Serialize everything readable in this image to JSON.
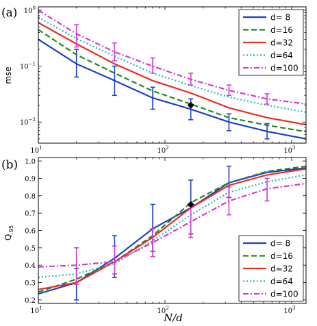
{
  "chart_data": [
    {
      "type": "line",
      "panel_label": "(a)",
      "xlabel": "",
      "ylabel": "mse",
      "xscale": "log",
      "yscale": "log",
      "xlim": [
        10,
        1300
      ],
      "ylim": [
        0.0042,
        1.15
      ],
      "x_ticks": [
        {
          "value": 10,
          "label": "10",
          "exp": "1"
        },
        {
          "value": 100,
          "label": "10",
          "exp": "2"
        },
        {
          "value": 1000,
          "label": "10",
          "exp": "3"
        }
      ],
      "y_ticks": [
        {
          "value": 1,
          "label": "10",
          "exp": "0"
        },
        {
          "value": 0.1,
          "label": "10",
          "exp": "−1"
        },
        {
          "value": 0.01,
          "label": "10",
          "exp": "−2"
        }
      ],
      "legend_position": "top-right",
      "series": [
        {
          "name": "d= 8",
          "color": "#1a3fcf",
          "dash": "solid",
          "x": [
            10,
            20,
            40,
            80,
            160,
            320,
            640,
            1300
          ],
          "y": [
            0.3,
            0.11,
            0.055,
            0.027,
            0.017,
            0.01,
            0.0068,
            0.005
          ],
          "errors": [
            {
              "x": 20,
              "lo": 0.064,
              "hi": 0.2
            },
            {
              "x": 40,
              "lo": 0.03,
              "hi": 0.1
            },
            {
              "x": 80,
              "lo": 0.017,
              "hi": 0.042
            },
            {
              "x": 160,
              "lo": 0.011,
              "hi": 0.026
            },
            {
              "x": 320,
              "lo": 0.007,
              "hi": 0.014
            },
            {
              "x": 640,
              "lo": 0.005,
              "hi": 0.0094
            }
          ]
        },
        {
          "name": "d=16",
          "color": "#1f8a1f",
          "dash": "dashed",
          "x": [
            10,
            20,
            40,
            80,
            160,
            320,
            640,
            1300
          ],
          "y": [
            0.45,
            0.16,
            0.075,
            0.036,
            0.021,
            0.012,
            0.0088,
            0.0067
          ]
        },
        {
          "name": "d=32",
          "color": "#ee2c1c",
          "dash": "solid",
          "x": [
            10,
            20,
            40,
            80,
            160,
            320,
            640,
            1300
          ],
          "y": [
            0.6,
            0.25,
            0.11,
            0.055,
            0.033,
            0.018,
            0.012,
            0.009
          ]
        },
        {
          "name": "d=64",
          "color": "#18b8c8",
          "dash": "dotted",
          "x": [
            10,
            20,
            40,
            80,
            160,
            320,
            640,
            1300
          ],
          "y": [
            0.75,
            0.31,
            0.15,
            0.075,
            0.045,
            0.028,
            0.02,
            0.015
          ]
        },
        {
          "name": "d=100",
          "color": "#d23ad2",
          "dash": "dashdot",
          "x": [
            10,
            20,
            40,
            80,
            160,
            320,
            640,
            1300
          ],
          "y": [
            1.0,
            0.38,
            0.18,
            0.1,
            0.058,
            0.037,
            0.026,
            0.021
          ],
          "errors": [
            {
              "x": 20,
              "lo": 0.22,
              "hi": 0.55
            },
            {
              "x": 40,
              "lo": 0.125,
              "hi": 0.26
            },
            {
              "x": 80,
              "lo": 0.075,
              "hi": 0.14
            },
            {
              "x": 160,
              "lo": 0.046,
              "hi": 0.075
            },
            {
              "x": 320,
              "lo": 0.03,
              "hi": 0.046
            },
            {
              "x": 640,
              "lo": 0.021,
              "hi": 0.032
            }
          ]
        }
      ],
      "marker": {
        "x": 160,
        "y": 0.02,
        "shape": "diamond",
        "color": "#000000"
      }
    },
    {
      "type": "line",
      "panel_label": "(b)",
      "xlabel": "N/d",
      "ylabel": "Q.95",
      "ylabel_main": "Q",
      "ylabel_sub": ".95",
      "xscale": "log",
      "yscale": "linear",
      "xlim": [
        10,
        1300
      ],
      "ylim": [
        0.18,
        1.02
      ],
      "x_ticks": [
        {
          "value": 10,
          "label": "10",
          "exp": "1"
        },
        {
          "value": 100,
          "label": "10",
          "exp": "2"
        },
        {
          "value": 1000,
          "label": "10",
          "exp": "3"
        }
      ],
      "y_ticks": [
        {
          "value": 0.2,
          "label": "0.2"
        },
        {
          "value": 0.3,
          "label": "0.3"
        },
        {
          "value": 0.4,
          "label": "0.4"
        },
        {
          "value": 0.5,
          "label": "0.5"
        },
        {
          "value": 0.6,
          "label": "0.6"
        },
        {
          "value": 0.7,
          "label": "0.7"
        },
        {
          "value": 0.8,
          "label": "0.8"
        },
        {
          "value": 0.9,
          "label": "0.9"
        },
        {
          "value": 1.0,
          "label": "1.0"
        }
      ],
      "legend_position": "bottom-right",
      "series": [
        {
          "name": "d= 8",
          "color": "#1a3fcf",
          "dash": "solid",
          "x": [
            10,
            20,
            40,
            80,
            160,
            320,
            640,
            1300
          ],
          "y": [
            0.235,
            0.3,
            0.44,
            0.61,
            0.73,
            0.875,
            0.935,
            0.96
          ],
          "errors": [
            {
              "x": 20,
              "lo": 0.2,
              "hi": 0.38
            },
            {
              "x": 40,
              "lo": 0.33,
              "hi": 0.57
            },
            {
              "x": 80,
              "lo": 0.48,
              "hi": 0.75
            },
            {
              "x": 160,
              "lo": 0.58,
              "hi": 0.89
            },
            {
              "x": 320,
              "lo": 0.79,
              "hi": 0.97
            }
          ]
        },
        {
          "name": "d=16",
          "color": "#1f8a1f",
          "dash": "dashed",
          "x": [
            10,
            20,
            40,
            80,
            160,
            320,
            640,
            1300
          ],
          "y": [
            0.245,
            0.32,
            0.42,
            0.57,
            0.76,
            0.875,
            0.94,
            0.97
          ]
        },
        {
          "name": "d=32",
          "color": "#ee2c1c",
          "dash": "solid",
          "x": [
            10,
            20,
            40,
            80,
            160,
            320,
            640,
            1300
          ],
          "y": [
            0.26,
            0.3,
            0.42,
            0.56,
            0.73,
            0.86,
            0.92,
            0.955
          ]
        },
        {
          "name": "d=64",
          "color": "#18b8c8",
          "dash": "dotted",
          "x": [
            10,
            20,
            40,
            80,
            160,
            320,
            640,
            1300
          ],
          "y": [
            0.33,
            0.35,
            0.41,
            0.54,
            0.69,
            0.82,
            0.88,
            0.92
          ]
        },
        {
          "name": "d=100",
          "color": "#d23ad2",
          "dash": "dashdot",
          "x": [
            10,
            20,
            40,
            80,
            160,
            320,
            640,
            1300
          ],
          "y": [
            0.39,
            0.4,
            0.42,
            0.53,
            0.65,
            0.77,
            0.84,
            0.87
          ],
          "errors": [
            {
              "x": 20,
              "lo": 0.29,
              "hi": 0.5
            },
            {
              "x": 40,
              "lo": 0.35,
              "hi": 0.51
            },
            {
              "x": 80,
              "lo": 0.45,
              "hi": 0.61
            },
            {
              "x": 160,
              "lo": 0.56,
              "hi": 0.74
            },
            {
              "x": 320,
              "lo": 0.69,
              "hi": 0.85
            },
            {
              "x": 640,
              "lo": 0.77,
              "hi": 0.9
            }
          ]
        }
      ],
      "marker": {
        "x": 160,
        "y": 0.75,
        "shape": "diamond",
        "color": "#000000"
      }
    }
  ]
}
